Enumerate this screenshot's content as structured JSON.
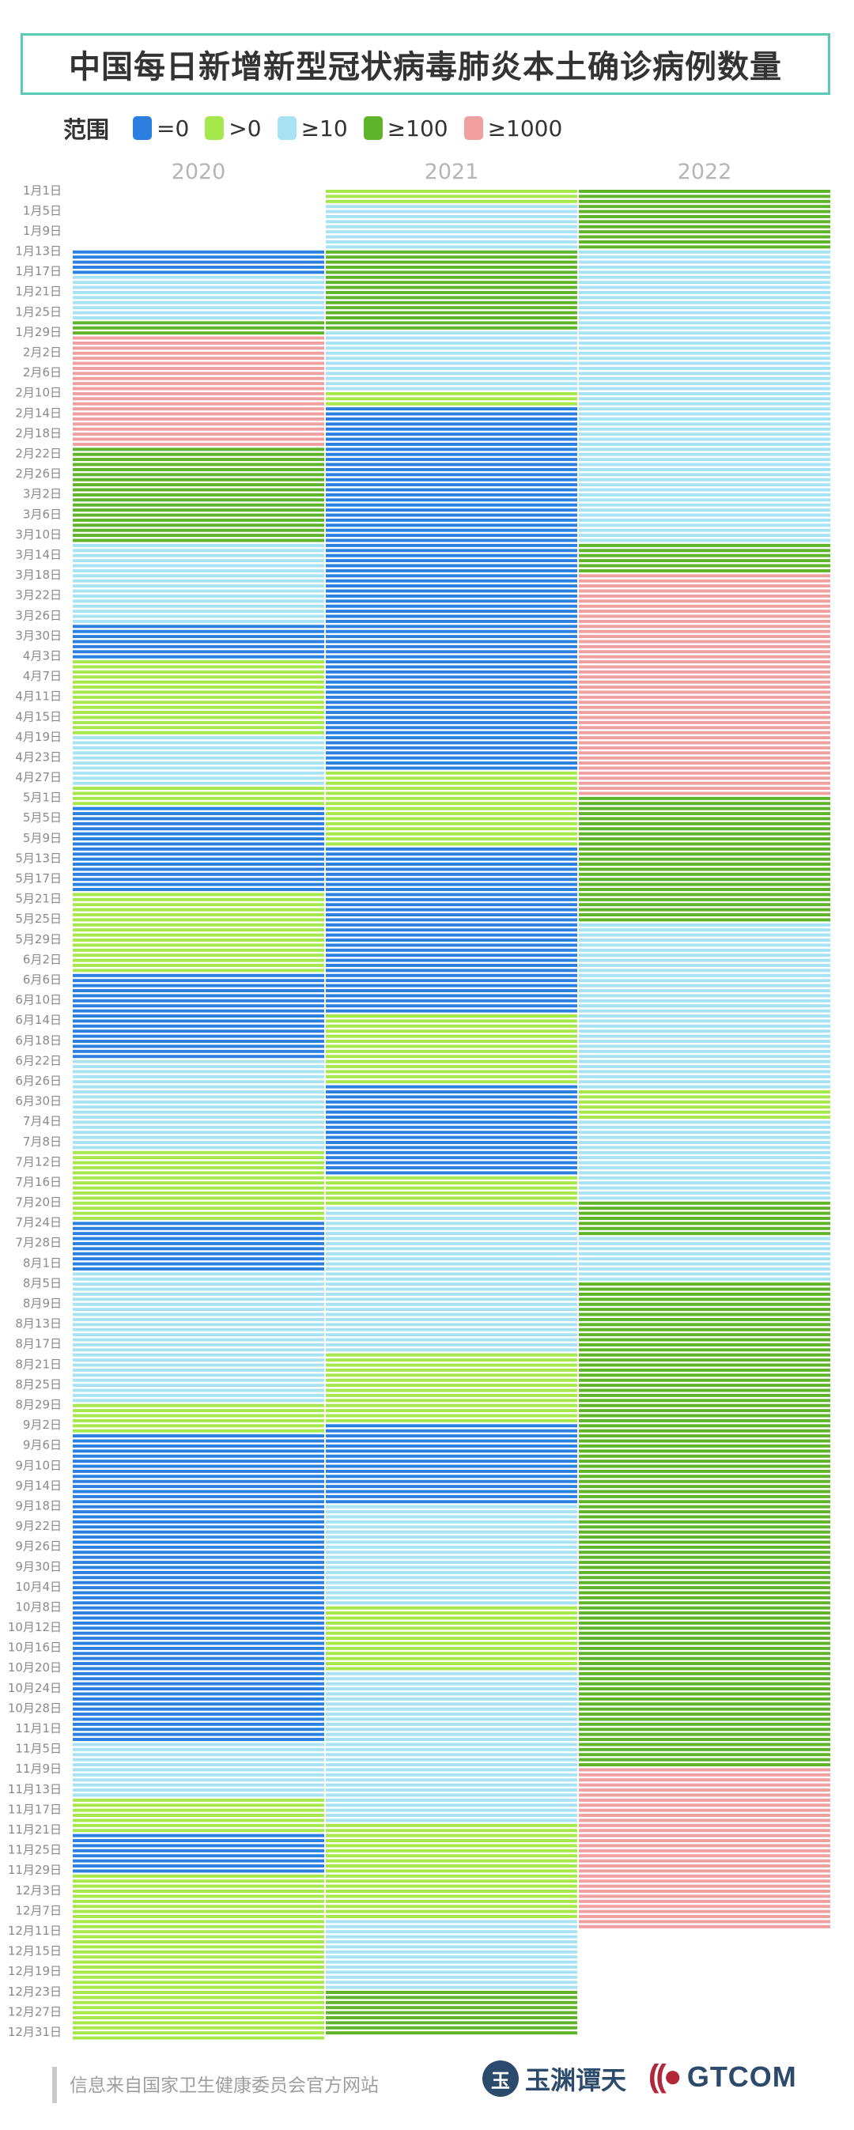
{
  "title": "中国每日新增新型冠状病毒肺炎本土确诊病例数量",
  "legend": {
    "label": "范围",
    "items": [
      {
        "label": "=0",
        "color": "#2b7fe0"
      },
      {
        "label": ">0",
        "color": "#a6e84b"
      },
      {
        "label": "≥10",
        "color": "#a9e3f3"
      },
      {
        "label": "≥100",
        "color": "#5fb42a"
      },
      {
        "label": "≥1000",
        "color": "#f0a0a0"
      }
    ]
  },
  "source": "信息来自国家卫生健康委员会官方网站",
  "logos": {
    "yuyuan": "玉渊谭天",
    "gtcom": "GTCOM",
    "yuyuan_mark": "玉",
    "gtcom_mark": "((●"
  },
  "chart_data": {
    "type": "heatmap",
    "title": "中国每日新增新型冠状病毒肺炎本土确诊病例数量",
    "x_categories": [
      "2020",
      "2021",
      "2022"
    ],
    "y_tick_labels": [
      "1月1日",
      "1月5日",
      "1月9日",
      "1月13日",
      "1月17日",
      "1月21日",
      "1月25日",
      "1月29日",
      "2月2日",
      "2月6日",
      "2月10日",
      "2月14日",
      "2月18日",
      "2月22日",
      "2月26日",
      "3月2日",
      "3月6日",
      "3月10日",
      "3月14日",
      "3月18日",
      "3月22日",
      "3月26日",
      "3月30日",
      "4月3日",
      "4月7日",
      "4月11日",
      "4月15日",
      "4月19日",
      "4月23日",
      "4月27日",
      "5月1日",
      "5月5日",
      "5月9日",
      "5月13日",
      "5月17日",
      "5月21日",
      "5月25日",
      "5月29日",
      "6月2日",
      "6月6日",
      "6月10日",
      "6月14日",
      "6月18日",
      "6月22日",
      "6月26日",
      "6月30日",
      "7月4日",
      "7月8日",
      "7月12日",
      "7月16日",
      "7月20日",
      "7月24日",
      "7月28日",
      "8月1日",
      "8月5日",
      "8月9日",
      "8月13日",
      "8月17日",
      "8月21日",
      "8月25日",
      "8月29日",
      "9月2日",
      "9月6日",
      "9月10日",
      "9月14日",
      "9月18日",
      "9月22日",
      "9月26日",
      "9月30日",
      "10月4日",
      "10月8日",
      "10月12日",
      "10月16日",
      "10月20日",
      "10月24日",
      "10月28日",
      "11月1日",
      "11月5日",
      "11月9日",
      "11月13日",
      "11月17日",
      "11月21日",
      "11月25日",
      "11月29日",
      "12月3日",
      "12月7日",
      "12月11日",
      "12月15日",
      "12月19日",
      "12月23日",
      "12月27日",
      "12月31日"
    ],
    "categories_legend": [
      "=0",
      ">0",
      "≥10",
      "≥100",
      "≥1000"
    ],
    "category_codes": {
      "0": "=0",
      "1": ">0",
      "2": "≥10",
      "3": "≥100",
      "4": "≥1000"
    },
    "series": [
      {
        "name": "2020",
        "segments": [
          {
            "from_day": 13,
            "to_day": 17,
            "code": 0
          },
          {
            "from_day": 18,
            "to_day": 26,
            "code": 2
          },
          {
            "from_day": 27,
            "to_day": 29,
            "code": 3
          },
          {
            "from_day": 30,
            "to_day": 51,
            "code": 4
          },
          {
            "from_day": 52,
            "to_day": 70,
            "code": 3
          },
          {
            "from_day": 71,
            "to_day": 86,
            "code": 2
          },
          {
            "from_day": 87,
            "to_day": 93,
            "code": 0
          },
          {
            "from_day": 94,
            "to_day": 108,
            "code": 1
          },
          {
            "from_day": 109,
            "to_day": 118,
            "code": 2
          },
          {
            "from_day": 119,
            "to_day": 122,
            "code": 1
          },
          {
            "from_day": 123,
            "to_day": 139,
            "code": 0
          },
          {
            "from_day": 140,
            "to_day": 155,
            "code": 1
          },
          {
            "from_day": 156,
            "to_day": 172,
            "code": 0
          },
          {
            "from_day": 173,
            "to_day": 190,
            "code": 2
          },
          {
            "from_day": 191,
            "to_day": 204,
            "code": 1
          },
          {
            "from_day": 205,
            "to_day": 214,
            "code": 0
          },
          {
            "from_day": 215,
            "to_day": 240,
            "code": 2
          },
          {
            "from_day": 241,
            "to_day": 246,
            "code": 1
          },
          {
            "from_day": 247,
            "to_day": 307,
            "code": 0
          },
          {
            "from_day": 308,
            "to_day": 318,
            "code": 2
          },
          {
            "from_day": 319,
            "to_day": 325,
            "code": 1
          },
          {
            "from_day": 326,
            "to_day": 333,
            "code": 0
          },
          {
            "from_day": 334,
            "to_day": 344,
            "code": 1
          },
          {
            "from_day": 345,
            "to_day": 366,
            "code": 1
          }
        ]
      },
      {
        "name": "2021",
        "segments": [
          {
            "from_day": 1,
            "to_day": 3,
            "code": 1
          },
          {
            "from_day": 4,
            "to_day": 12,
            "code": 2
          },
          {
            "from_day": 13,
            "to_day": 28,
            "code": 3
          },
          {
            "from_day": 29,
            "to_day": 40,
            "code": 2
          },
          {
            "from_day": 41,
            "to_day": 43,
            "code": 1
          },
          {
            "from_day": 44,
            "to_day": 115,
            "code": 0
          },
          {
            "from_day": 116,
            "to_day": 130,
            "code": 1
          },
          {
            "from_day": 131,
            "to_day": 163,
            "code": 0
          },
          {
            "from_day": 164,
            "to_day": 177,
            "code": 1
          },
          {
            "from_day": 178,
            "to_day": 195,
            "code": 0
          },
          {
            "from_day": 196,
            "to_day": 201,
            "code": 1
          },
          {
            "from_day": 202,
            "to_day": 230,
            "code": 2
          },
          {
            "from_day": 231,
            "to_day": 244,
            "code": 1
          },
          {
            "from_day": 245,
            "to_day": 260,
            "code": 0
          },
          {
            "from_day": 261,
            "to_day": 280,
            "code": 2
          },
          {
            "from_day": 281,
            "to_day": 293,
            "code": 1
          },
          {
            "from_day": 294,
            "to_day": 310,
            "code": 2
          },
          {
            "from_day": 311,
            "to_day": 323,
            "code": 2
          },
          {
            "from_day": 324,
            "to_day": 342,
            "code": 1
          },
          {
            "from_day": 343,
            "to_day": 356,
            "code": 2
          },
          {
            "from_day": 357,
            "to_day": 365,
            "code": 3
          }
        ]
      },
      {
        "name": "2022",
        "segments": [
          {
            "from_day": 1,
            "to_day": 12,
            "code": 3
          },
          {
            "from_day": 13,
            "to_day": 70,
            "code": 2
          },
          {
            "from_day": 71,
            "to_day": 76,
            "code": 3
          },
          {
            "from_day": 77,
            "to_day": 120,
            "code": 4
          },
          {
            "from_day": 121,
            "to_day": 145,
            "code": 3
          },
          {
            "from_day": 146,
            "to_day": 178,
            "code": 2
          },
          {
            "from_day": 179,
            "to_day": 184,
            "code": 1
          },
          {
            "from_day": 185,
            "to_day": 200,
            "code": 2
          },
          {
            "from_day": 201,
            "to_day": 207,
            "code": 3
          },
          {
            "from_day": 208,
            "to_day": 216,
            "code": 2
          },
          {
            "from_day": 217,
            "to_day": 312,
            "code": 3
          },
          {
            "from_day": 313,
            "to_day": 344,
            "code": 4
          }
        ]
      }
    ]
  }
}
